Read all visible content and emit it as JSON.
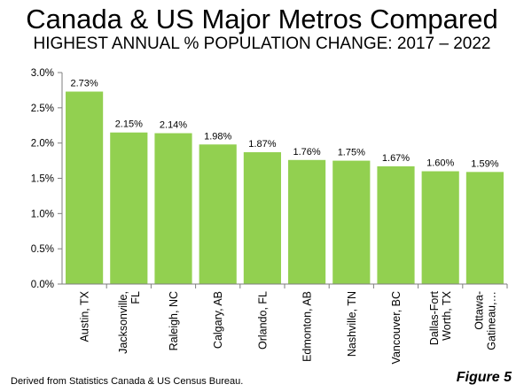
{
  "title": "Canada & US Major Metros Compared",
  "subtitle": "HIGHEST ANNUAL % POPULATION CHANGE: 2017 – 2022",
  "source": "Derived from Statistics Canada & US Census Bureau.",
  "figure_label": "Figure 5",
  "colors": {
    "bar": "#92d050",
    "axis": "#7f7f7f"
  },
  "chart_data": {
    "type": "bar",
    "categories": [
      [
        "Austin, TX"
      ],
      [
        "Jacksonville,",
        "FL"
      ],
      [
        "Raleigh, NC"
      ],
      [
        "Calgary, AB"
      ],
      [
        "Orlando, FL"
      ],
      [
        "Edmonton, AB"
      ],
      [
        "Nashville, TN"
      ],
      [
        "Vancouver, BC"
      ],
      [
        "Dallas-Fort",
        "Worth, TX"
      ],
      [
        "Ottawa-",
        "Gatineau,…"
      ]
    ],
    "values": [
      2.73,
      2.15,
      2.14,
      1.98,
      1.87,
      1.76,
      1.75,
      1.67,
      1.6,
      1.59
    ],
    "data_labels": [
      "2.73%",
      "2.15%",
      "2.14%",
      "1.98%",
      "1.87%",
      "1.76%",
      "1.75%",
      "1.67%",
      "1.60%",
      "1.59%"
    ],
    "yticks": [
      "0.0%",
      "0.5%",
      "1.0%",
      "1.5%",
      "2.0%",
      "2.5%",
      "3.0%"
    ],
    "ylim": [
      0,
      3.0
    ],
    "ystep": 0.5,
    "grid": false,
    "legend": "none"
  }
}
